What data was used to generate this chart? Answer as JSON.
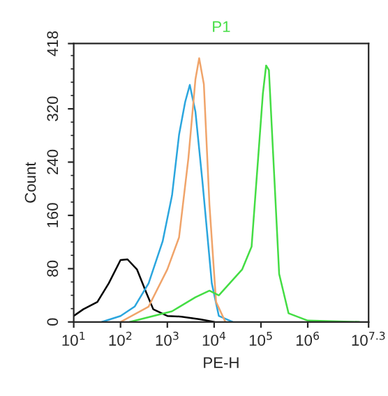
{
  "chart_data": {
    "type": "line",
    "title": "P1",
    "xlabel": "PE-H",
    "ylabel": "Count",
    "log": "x",
    "xlim": [
      10,
      19952623
    ],
    "ylim": [
      0,
      418
    ],
    "xticks": [
      {
        "value": 10,
        "label": "10$^{1}$"
      },
      {
        "value": 100,
        "label": "10$^{2}$"
      },
      {
        "value": 1000,
        "label": "10$^{3}$"
      },
      {
        "value": 10000,
        "label": "10$^{4}$"
      },
      {
        "value": 100000,
        "label": "10$^{5}$"
      },
      {
        "value": 1000000,
        "label": "10$^{6}$"
      },
      {
        "value": 19952623,
        "label": "10$^{7.3}$"
      }
    ],
    "yticks": [
      0,
      80,
      160,
      240,
      320,
      418
    ],
    "grid": false,
    "marker": "none",
    "line_style": "solid",
    "series": [
      {
        "color": "#000000",
        "x": [
          10,
          16,
          32,
          56,
          100,
          141,
          224,
          355,
          501,
          1000,
          2000,
          5010,
          10000
        ],
        "values": [
          9,
          19,
          30,
          58,
          93,
          94,
          79,
          44,
          19,
          9,
          8,
          4,
          0
        ]
      },
      {
        "color": "#2ba6de",
        "x": [
          40,
          100,
          200,
          398,
          794,
          1260,
          1780,
          2400,
          3020,
          3980,
          5620,
          8910,
          12600,
          25100
        ],
        "values": [
          0,
          9,
          23,
          58,
          121,
          190,
          281,
          330,
          356,
          316,
          211,
          58,
          9,
          0
        ]
      },
      {
        "color": "#f0a46a",
        "x": [
          100,
          398,
          1000,
          1780,
          2820,
          3980,
          4790,
          6030,
          7940,
          11000,
          17400
        ],
        "values": [
          0,
          23,
          79,
          127,
          246,
          364,
          396,
          357,
          176,
          30,
          0
        ]
      },
      {
        "color": "#44dd44",
        "x": [
          158,
          1260,
          3980,
          7940,
          12600,
          39800,
          63100,
          87100,
          110000,
          129000,
          148000,
          195000,
          245000,
          389000,
          1000000,
          12600000
        ],
        "values": [
          0,
          16,
          37,
          47,
          40,
          79,
          113,
          246,
          343,
          385,
          378,
          211,
          72,
          13,
          2,
          0
        ]
      }
    ]
  }
}
